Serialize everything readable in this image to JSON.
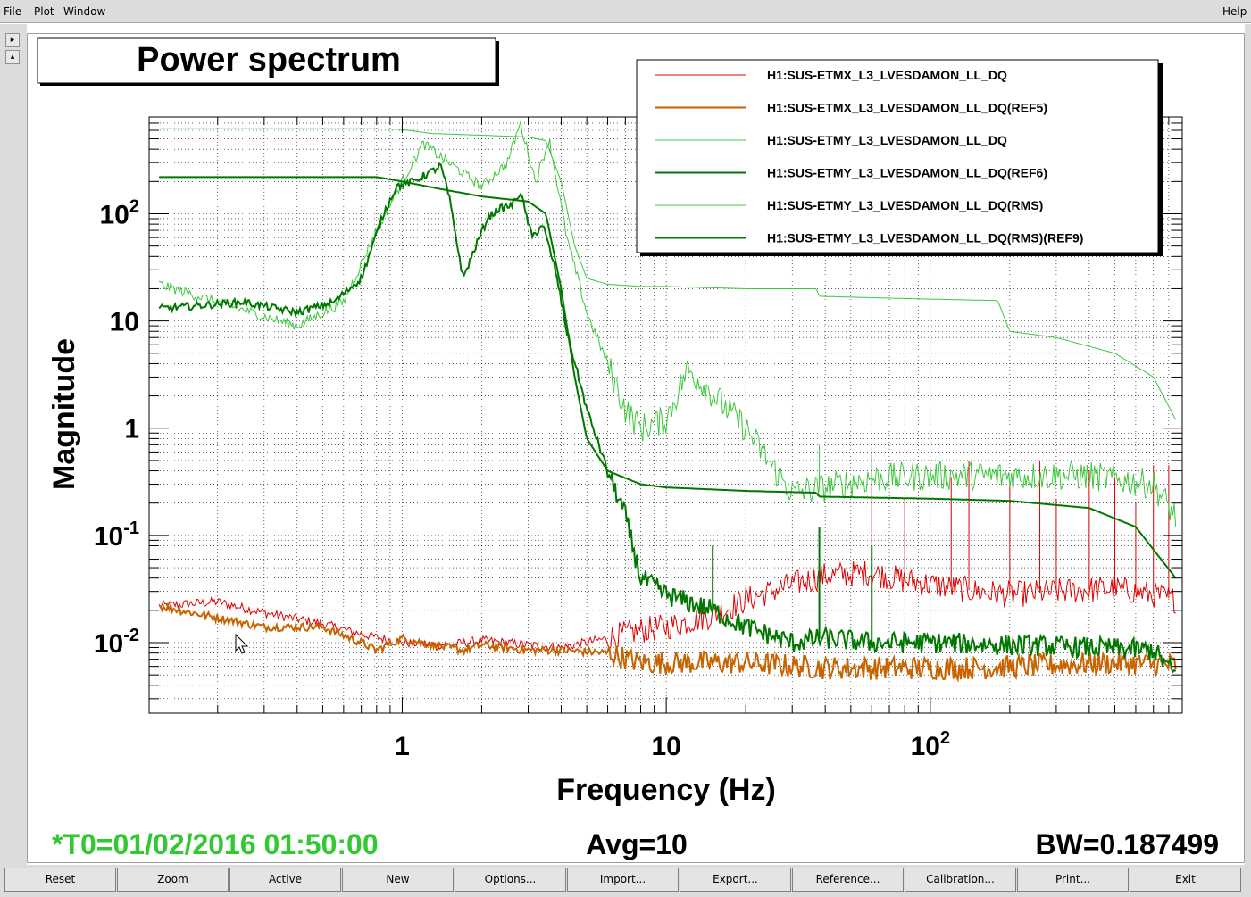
{
  "menu": {
    "file": "File",
    "plot": "Plot",
    "window": "Window",
    "help": "Help"
  },
  "scroll": {
    "up": "▸",
    "down": "▴"
  },
  "status": {
    "t0": "*T0=01/02/2016 01:50:00",
    "avg": "Avg=10",
    "bw": "BW=0.187499"
  },
  "colors": {
    "etmx": "#e00000",
    "etmx_ref5": "#c86400",
    "etmy": "#3cc83c",
    "etmy_ref6": "#007800",
    "etmy_rms": "#3cc83c",
    "etmy_rms_ref9": "#007800",
    "t0_text": "#32c832"
  },
  "buttons": [
    "Reset",
    "Zoom",
    "Active",
    "New",
    "Options...",
    "Import...",
    "Export...",
    "Reference...",
    "Calibration...",
    "Print...",
    "Exit"
  ],
  "chart_data": {
    "type": "line",
    "title": "Power spectrum",
    "xlabel": "Frequency (Hz)",
    "ylabel": "Magnitude",
    "xscale": "log",
    "yscale": "log",
    "xlim": [
      0.11,
      900
    ],
    "ylim": [
      0.0022,
      800
    ],
    "x_ticks": [
      {
        "value": 1,
        "base": "1",
        "exp": ""
      },
      {
        "value": 10,
        "base": "10",
        "exp": ""
      },
      {
        "value": 100,
        "base": "10",
        "exp": "2"
      }
    ],
    "y_ticks": [
      {
        "value": 0.01,
        "base": "10",
        "exp": "-2"
      },
      {
        "value": 0.1,
        "base": "10",
        "exp": "-1"
      },
      {
        "value": 1,
        "base": "1",
        "exp": ""
      },
      {
        "value": 10,
        "base": "10",
        "exp": ""
      },
      {
        "value": 100,
        "base": "10",
        "exp": "2"
      }
    ],
    "grid": true,
    "legend_position": "top-right",
    "series": [
      {
        "name": "H1:SUS-ETMX_L3_LVESDAMON_LL_DQ",
        "color": "#e00000",
        "width": 1,
        "points": [
          [
            0.12,
            0.022
          ],
          [
            0.2,
            0.024
          ],
          [
            0.3,
            0.019
          ],
          [
            0.5,
            0.015
          ],
          [
            0.7,
            0.012
          ],
          [
            1,
            0.01
          ],
          [
            1.5,
            0.0095
          ],
          [
            2,
            0.0105
          ],
          [
            3,
            0.0095
          ],
          [
            4,
            0.009
          ],
          [
            6,
            0.011
          ],
          [
            8,
            0.013
          ],
          [
            10,
            0.014
          ],
          [
            15,
            0.018
          ],
          [
            20,
            0.025
          ],
          [
            30,
            0.035
          ],
          [
            40,
            0.042
          ],
          [
            60,
            0.045
          ],
          [
            80,
            0.038
          ],
          [
            100,
            0.035
          ],
          [
            150,
            0.03
          ],
          [
            200,
            0.028
          ],
          [
            300,
            0.03
          ],
          [
            500,
            0.032
          ],
          [
            700,
            0.028
          ],
          [
            850,
            0.025
          ]
        ],
        "spikes": [
          [
            60,
            0.6
          ],
          [
            80,
            0.22
          ],
          [
            120,
            0.35
          ],
          [
            140,
            0.5
          ],
          [
            200,
            0.3
          ],
          [
            260,
            0.5
          ],
          [
            300,
            0.22
          ],
          [
            400,
            0.4
          ],
          [
            500,
            0.35
          ],
          [
            600,
            0.2
          ],
          [
            700,
            0.45
          ],
          [
            800,
            0.45
          ]
        ]
      },
      {
        "name": "H1:SUS-ETMX_L3_LVESDAMON_LL_DQ(REF5)",
        "color": "#c86400",
        "width": 2,
        "points": [
          [
            0.12,
            0.022
          ],
          [
            0.2,
            0.017
          ],
          [
            0.3,
            0.014
          ],
          [
            0.5,
            0.014
          ],
          [
            0.7,
            0.01
          ],
          [
            0.8,
            0.0085
          ],
          [
            1,
            0.011
          ],
          [
            1.3,
            0.0095
          ],
          [
            1.7,
            0.0085
          ],
          [
            2,
            0.0095
          ],
          [
            3,
            0.0085
          ],
          [
            4,
            0.0085
          ],
          [
            6,
            0.008
          ],
          [
            8,
            0.0065
          ],
          [
            10,
            0.0065
          ],
          [
            20,
            0.0065
          ],
          [
            40,
            0.0058
          ],
          [
            80,
            0.0058
          ],
          [
            150,
            0.0058
          ],
          [
            300,
            0.0062
          ],
          [
            500,
            0.0065
          ],
          [
            850,
            0.0062
          ]
        ]
      },
      {
        "name": "H1:SUS-ETMY_L3_LVESDAMON_LL_DQ",
        "color": "#3cc83c",
        "width": 1,
        "points": [
          [
            0.12,
            22
          ],
          [
            0.2,
            15
          ],
          [
            0.3,
            11
          ],
          [
            0.4,
            9
          ],
          [
            0.6,
            15
          ],
          [
            0.8,
            70
          ],
          [
            1,
            200
          ],
          [
            1.2,
            450
          ],
          [
            1.5,
            300
          ],
          [
            2,
            180
          ],
          [
            2.5,
            300
          ],
          [
            2.8,
            700
          ],
          [
            3.2,
            200
          ],
          [
            3.6,
            500
          ],
          [
            4.2,
            60
          ],
          [
            5,
            12
          ],
          [
            6,
            4
          ],
          [
            7,
            1.5
          ],
          [
            8,
            1.0
          ],
          [
            10,
            1.2
          ],
          [
            12,
            3.5
          ],
          [
            14,
            2.5
          ],
          [
            17,
            1.5
          ],
          [
            20,
            1.0
          ],
          [
            25,
            0.45
          ],
          [
            30,
            0.25
          ],
          [
            40,
            0.28
          ],
          [
            60,
            0.34
          ],
          [
            100,
            0.36
          ],
          [
            200,
            0.36
          ],
          [
            400,
            0.36
          ],
          [
            700,
            0.3
          ],
          [
            850,
            0.15
          ]
        ],
        "spikes": [
          [
            38,
            0.7
          ],
          [
            60,
            0.65
          ]
        ]
      },
      {
        "name": "H1:SUS-ETMY_L3_LVESDAMON_LL_DQ(REF6)",
        "color": "#007800",
        "width": 2,
        "points": [
          [
            0.12,
            13
          ],
          [
            0.25,
            15
          ],
          [
            0.4,
            12
          ],
          [
            0.55,
            15
          ],
          [
            0.7,
            25
          ],
          [
            0.85,
            100
          ],
          [
            0.95,
            180
          ],
          [
            1.1,
            200
          ],
          [
            1.3,
            250
          ],
          [
            1.4,
            280
          ],
          [
            1.5,
            150
          ],
          [
            1.7,
            25
          ],
          [
            1.9,
            50
          ],
          [
            2.1,
            90
          ],
          [
            2.3,
            110
          ],
          [
            2.6,
            120
          ],
          [
            2.8,
            160
          ],
          [
            3.1,
            60
          ],
          [
            3.4,
            80
          ],
          [
            3.8,
            30
          ],
          [
            4.2,
            8
          ],
          [
            5,
            1.5
          ],
          [
            6,
            0.4
          ],
          [
            7,
            0.15
          ],
          [
            8,
            0.04
          ],
          [
            10,
            0.028
          ],
          [
            15,
            0.02
          ],
          [
            20,
            0.014
          ],
          [
            30,
            0.01
          ],
          [
            40,
            0.011
          ],
          [
            60,
            0.01
          ],
          [
            100,
            0.01
          ],
          [
            200,
            0.0095
          ],
          [
            400,
            0.009
          ],
          [
            700,
            0.0085
          ],
          [
            850,
            0.005
          ]
        ],
        "spikes": [
          [
            15,
            0.08
          ],
          [
            38,
            0.12
          ],
          [
            60,
            0.08
          ]
        ]
      },
      {
        "name": "H1:SUS-ETMY_L3_LVESDAMON_LL_DQ(RMS)",
        "color": "#3cc83c",
        "width": 1,
        "points": [
          [
            0.12,
            620
          ],
          [
            0.8,
            620
          ],
          [
            1,
            610
          ],
          [
            1.3,
            560
          ],
          [
            2,
            540
          ],
          [
            3,
            520
          ],
          [
            3.5,
            480
          ],
          [
            4,
            200
          ],
          [
            4.5,
            50
          ],
          [
            5,
            25
          ],
          [
            6,
            22
          ],
          [
            8,
            21
          ],
          [
            10,
            21
          ],
          [
            20,
            20
          ],
          [
            37,
            20
          ],
          [
            38,
            17
          ],
          [
            60,
            16.5
          ],
          [
            100,
            16
          ],
          [
            180,
            15.5
          ],
          [
            200,
            8
          ],
          [
            300,
            7
          ],
          [
            500,
            5
          ],
          [
            700,
            3
          ],
          [
            850,
            1.2
          ]
        ]
      },
      {
        "name": "H1:SUS-ETMY_L3_LVESDAMON_LL_DQ(RMS)(REF9)",
        "color": "#007800",
        "width": 2,
        "points": [
          [
            0.12,
            220
          ],
          [
            0.8,
            220
          ],
          [
            1,
            200
          ],
          [
            1.4,
            170
          ],
          [
            2,
            145
          ],
          [
            3,
            130
          ],
          [
            3.5,
            100
          ],
          [
            4,
            20
          ],
          [
            4.5,
            3
          ],
          [
            5,
            0.8
          ],
          [
            6,
            0.4
          ],
          [
            8,
            0.3
          ],
          [
            10,
            0.28
          ],
          [
            20,
            0.26
          ],
          [
            37,
            0.25
          ],
          [
            38,
            0.23
          ],
          [
            100,
            0.22
          ],
          [
            200,
            0.21
          ],
          [
            400,
            0.18
          ],
          [
            600,
            0.12
          ],
          [
            850,
            0.04
          ]
        ]
      }
    ]
  }
}
